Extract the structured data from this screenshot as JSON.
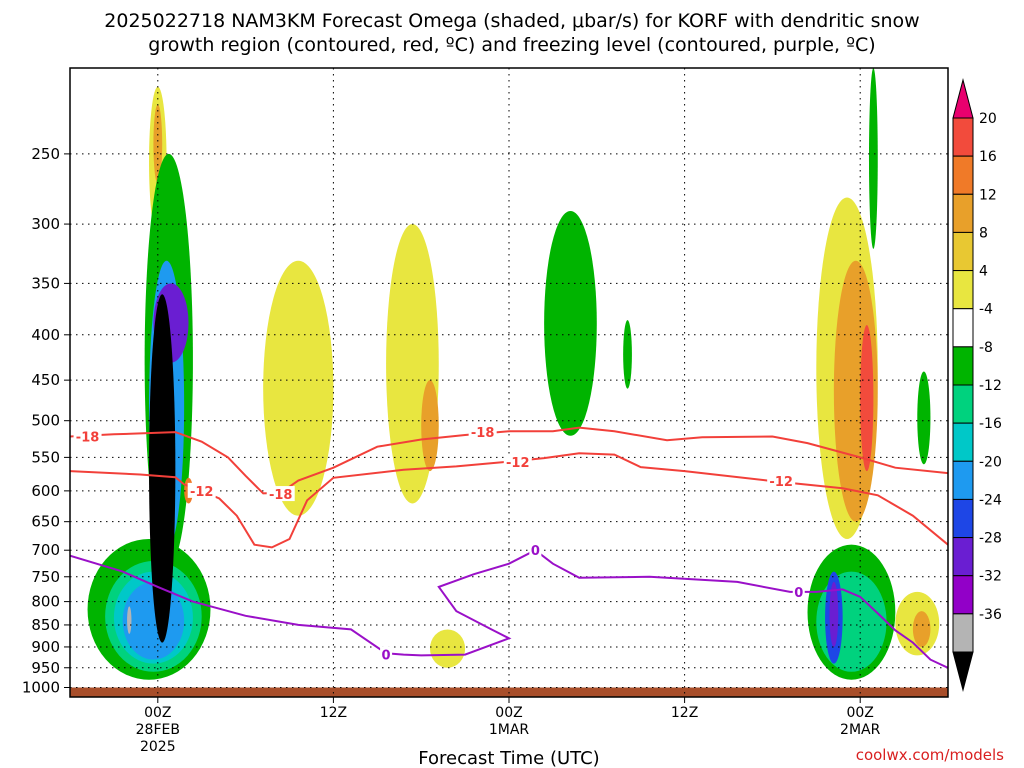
{
  "chart_data": {
    "type": "time-height cross section",
    "title_line1": "2025022718 NAM3KM Forecast Omega (shaded, μbar/s) for KORF with dendritic snow",
    "title_line2": "growth region (contoured, red, ºC) and freezing level (contoured, purple, ºC)",
    "xlabel": "Forecast Time (UTC)",
    "credit": "coolwx.com/models",
    "y_ticks": [
      250,
      300,
      350,
      400,
      450,
      500,
      550,
      600,
      650,
      700,
      750,
      800,
      850,
      900,
      950,
      1000
    ],
    "y_range_hpa": [
      1025,
      200
    ],
    "y_scale": "log-pressure",
    "x_range_hours": [
      -10,
      90
    ],
    "x_ticks": [
      {
        "hour": 0,
        "label": "00Z",
        "sub1": "28FEB",
        "sub2": "2025"
      },
      {
        "hour": 20,
        "label": "12Z",
        "sub1": "",
        "sub2": ""
      },
      {
        "hour": 40,
        "label": "00Z",
        "sub1": "1MAR",
        "sub2": ""
      },
      {
        "hour": 60,
        "label": "12Z",
        "sub1": "",
        "sub2": ""
      },
      {
        "hour": 80,
        "label": "00Z",
        "sub1": "2MAR",
        "sub2": ""
      }
    ],
    "grid": "dotted",
    "colorbar": {
      "labels": [
        "20",
        "16",
        "12",
        "8",
        "4",
        "-4",
        "-8",
        "-12",
        "-16",
        "-20",
        "-24",
        "-28",
        "-32",
        "-36"
      ],
      "colors": [
        "#e8006e",
        "#f24b3c",
        "#f07a28",
        "#e8a02a",
        "#e8c832",
        "#e8e640",
        "#ffffff",
        "#00b400",
        "#00d27e",
        "#00c8c8",
        "#1e9af0",
        "#1e46e6",
        "#6a1ed2",
        "#9200c8",
        "#b4b4b4",
        "#000000"
      ]
    },
    "contours": {
      "red_minus18": [
        [
          -10,
          521
        ],
        [
          -5,
          518
        ],
        [
          0,
          516
        ],
        [
          2,
          515
        ],
        [
          5,
          528
        ],
        [
          8,
          550
        ],
        [
          10,
          577
        ],
        [
          12,
          604
        ],
        [
          14,
          603
        ],
        [
          16,
          584
        ],
        [
          20,
          565
        ],
        [
          25,
          535
        ],
        [
          30,
          525
        ],
        [
          35,
          519
        ],
        [
          40,
          514
        ],
        [
          45,
          514
        ],
        [
          48,
          509
        ],
        [
          52,
          514
        ],
        [
          58,
          526
        ],
        [
          62,
          522
        ],
        [
          70,
          521
        ],
        [
          74,
          530
        ],
        [
          80,
          550
        ],
        [
          84,
          565
        ],
        [
          90,
          573
        ]
      ],
      "red_minus12": [
        [
          -10,
          570
        ],
        [
          -2,
          575
        ],
        [
          2,
          579
        ],
        [
          3,
          590
        ],
        [
          5,
          600
        ],
        [
          7,
          612
        ],
        [
          9,
          640
        ],
        [
          11,
          690
        ],
        [
          13,
          695
        ],
        [
          15,
          680
        ],
        [
          17,
          615
        ],
        [
          20,
          580
        ],
        [
          28,
          568
        ],
        [
          34,
          563
        ],
        [
          40,
          556
        ],
        [
          44,
          551
        ],
        [
          48,
          544
        ],
        [
          52,
          546
        ],
        [
          55,
          564
        ],
        [
          60,
          570
        ],
        [
          70,
          585
        ],
        [
          78,
          596
        ],
        [
          82,
          607
        ],
        [
          86,
          640
        ],
        [
          90,
          690
        ]
      ],
      "purple_zero": [
        [
          -10,
          710
        ],
        [
          -4,
          740
        ],
        [
          0,
          770
        ],
        [
          4,
          800
        ],
        [
          10,
          830
        ],
        [
          16,
          850
        ],
        [
          22,
          860
        ],
        [
          26,
          915
        ],
        [
          28,
          918
        ],
        [
          30,
          920
        ],
        [
          35,
          918
        ],
        [
          40,
          880
        ],
        [
          38,
          860
        ],
        [
          34,
          820
        ],
        [
          32,
          770
        ],
        [
          36,
          745
        ],
        [
          40,
          725
        ],
        [
          43,
          700
        ],
        [
          45,
          725
        ],
        [
          48,
          752
        ],
        [
          56,
          750
        ],
        [
          66,
          760
        ],
        [
          72,
          780
        ],
        [
          75,
          780
        ],
        [
          78,
          775
        ],
        [
          80,
          790
        ],
        [
          82,
          825
        ],
        [
          84,
          862
        ],
        [
          86,
          890
        ],
        [
          88,
          930
        ],
        [
          90,
          950
        ]
      ],
      "labels": [
        {
          "text": "-18",
          "hour": -8,
          "p": 521,
          "color": "#f2403a"
        },
        {
          "text": "-18",
          "hour": 37,
          "p": 515,
          "color": "#f2403a"
        },
        {
          "text": "-18",
          "hour": 14,
          "p": 605,
          "color": "#f2403a"
        },
        {
          "text": "-12",
          "hour": 41,
          "p": 557,
          "color": "#f2403a"
        },
        {
          "text": "-12",
          "hour": 5,
          "p": 600,
          "color": "#f2403a"
        },
        {
          "text": "-12",
          "hour": 71,
          "p": 585,
          "color": "#f2403a"
        },
        {
          "text": "0",
          "hour": 43,
          "p": 700,
          "color": "#9a10c8"
        },
        {
          "text": "0",
          "hour": 26,
          "p": 918,
          "color": "#9a10c8"
        },
        {
          "text": "0",
          "hour": 73,
          "p": 780,
          "color": "#9a10c8"
        }
      ]
    },
    "shaded_regions": [
      {
        "name": "yellow-column-left-top",
        "color": "#e8e640",
        "hour": [
          -1,
          1
        ],
        "p": [
          210,
          310
        ]
      },
      {
        "name": "orange-core-left-top",
        "color": "#e8a02a",
        "hour": [
          -0.5,
          0.5
        ],
        "p": [
          220,
          270
        ]
      },
      {
        "name": "green-left-column",
        "color": "#00b400",
        "hour": [
          -1.5,
          4
        ],
        "p": [
          250,
          730
        ]
      },
      {
        "name": "green-low-left",
        "color": "#00b400",
        "hour": [
          -8,
          6
        ],
        "p": [
          680,
          980
        ]
      },
      {
        "name": "teal-low-left",
        "color": "#00d27e",
        "hour": [
          -6,
          5
        ],
        "p": [
          720,
          960
        ]
      },
      {
        "name": "cyan-low-left",
        "color": "#00c8c8",
        "hour": [
          -5,
          4
        ],
        "p": [
          740,
          940
        ]
      },
      {
        "name": "blue-low-left",
        "color": "#1e9af0",
        "hour": [
          -4,
          3
        ],
        "p": [
          760,
          930
        ]
      },
      {
        "name": "blue-column-left",
        "color": "#1e9af0",
        "hour": [
          -1,
          3
        ],
        "p": [
          330,
          700
        ]
      },
      {
        "name": "purple-column-left",
        "color": "#6a1ed2",
        "hour": [
          -0.5,
          3.5
        ],
        "p": [
          350,
          430
        ]
      },
      {
        "name": "black-core-left",
        "color": "#000000",
        "hour": [
          -1,
          2
        ],
        "p": [
          360,
          890
        ]
      },
      {
        "name": "grey-core-left",
        "color": "#b4b4b4",
        "hour": [
          -3.5,
          -3
        ],
        "p": [
          810,
          870
        ]
      },
      {
        "name": "orange-patch-left",
        "color": "#f07a28",
        "hour": [
          3,
          4
        ],
        "p": [
          580,
          620
        ]
      },
      {
        "name": "yellow-band-mid1",
        "color": "#e8e640",
        "hour": [
          12,
          20
        ],
        "p": [
          330,
          640
        ]
      },
      {
        "name": "yellow-band-mid2",
        "color": "#e8e640",
        "hour": [
          26,
          32
        ],
        "p": [
          300,
          620
        ]
      },
      {
        "name": "orange-patch-mid",
        "color": "#e8a02a",
        "hour": [
          30,
          32
        ],
        "p": [
          450,
          570
        ]
      },
      {
        "name": "green-mid1",
        "color": "#00b400",
        "hour": [
          44,
          50
        ],
        "p": [
          290,
          520
        ]
      },
      {
        "name": "green-mid2",
        "color": "#00b400",
        "hour": [
          53,
          54
        ],
        "p": [
          385,
          460
        ]
      },
      {
        "name": "yellow-patch-low-mid",
        "color": "#e8e640",
        "hour": [
          31,
          35
        ],
        "p": [
          860,
          950
        ]
      },
      {
        "name": "yellow-column-right",
        "color": "#e8e640",
        "hour": [
          75,
          82
        ],
        "p": [
          280,
          680
        ]
      },
      {
        "name": "orange-column-right",
        "color": "#e8a02a",
        "hour": [
          77,
          82
        ],
        "p": [
          330,
          650
        ]
      },
      {
        "name": "red-core-right",
        "color": "#f24b3c",
        "hour": [
          80,
          81.5
        ],
        "p": [
          390,
          570
        ]
      },
      {
        "name": "green-top-right",
        "color": "#00b400",
        "hour": [
          81,
          82
        ],
        "p": [
          200,
          320
        ]
      },
      {
        "name": "green-low-right",
        "color": "#00b400",
        "hour": [
          74,
          84
        ],
        "p": [
          690,
          980
        ]
      },
      {
        "name": "teal-low-right",
        "color": "#00d27e",
        "hour": [
          75,
          83
        ],
        "p": [
          740,
          960
        ]
      },
      {
        "name": "blue-low-right",
        "color": "#1e46e6",
        "hour": [
          76,
          78
        ],
        "p": [
          740,
          940
        ]
      },
      {
        "name": "purple-low-right",
        "color": "#6a1ed2",
        "hour": [
          76.5,
          77.5
        ],
        "p": [
          760,
          900
        ]
      },
      {
        "name": "green-right-edge",
        "color": "#00b400",
        "hour": [
          86.5,
          88
        ],
        "p": [
          440,
          560
        ]
      },
      {
        "name": "yellow-right-low",
        "color": "#e8e640",
        "hour": [
          84,
          89
        ],
        "p": [
          780,
          920
        ]
      },
      {
        "name": "orange-right-low",
        "color": "#e8a02a",
        "hour": [
          86,
          88
        ],
        "p": [
          820,
          900
        ]
      }
    ],
    "surface_band": {
      "color": "#a84e2a",
      "p": [
        1000,
        1025
      ]
    }
  }
}
